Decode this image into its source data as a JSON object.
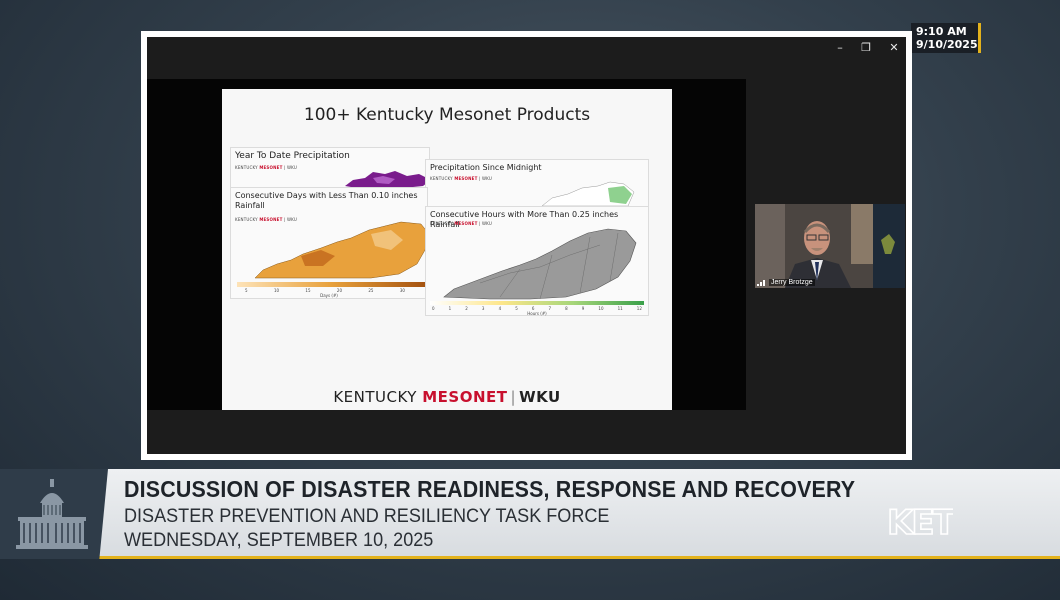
{
  "clock": {
    "time": "9:10 AM",
    "date": "9/10/2025"
  },
  "window_controls": {
    "minimize": "–",
    "restore": "❐",
    "close": "✕"
  },
  "slide": {
    "title": "100+ Kentucky Mesonet Products",
    "panels": [
      {
        "title": "Year To Date Precipitation"
      },
      {
        "title": "Precipitation Since Midnight"
      },
      {
        "title": "Consecutive Days with Less Than 0.10 inches Rainfall",
        "axis_label": "Days (#)",
        "ticks": [
          "5",
          "10",
          "15",
          "20",
          "25",
          "30"
        ]
      },
      {
        "title": "Consecutive Hours with More Than 0.25 inches Rainfall",
        "axis_label": "Hours (#)",
        "ticks": [
          "0",
          "1",
          "2",
          "3",
          "4",
          "5",
          "6",
          "7",
          "8",
          "9",
          "10",
          "11",
          "12"
        ]
      }
    ],
    "mini_brand": {
      "kentucky": "KENTUCKY ",
      "mesonet": "MESONET",
      "wku": " | WKU"
    },
    "footer": {
      "kentucky": "KENTUCKY ",
      "mesonet": "MESONET",
      "sep": "|",
      "wku": "WKU"
    }
  },
  "camera": {
    "participant_name": "Jerry Brotzge"
  },
  "lower_third": {
    "headline": "DISCUSSION OF DISASTER READINESS, RESPONSE AND RECOVERY",
    "committee": "DISASTER PREVENTION AND RESILIENCY TASK FORCE",
    "date": "WEDNESDAY, SEPTEMBER 10, 2025",
    "logo": "KET"
  },
  "colors": {
    "accent_gold": "#e3b21c",
    "mesonet_red": "#c8102e",
    "capitol_box": "#2f3c49",
    "orange_map": "#e8a13c",
    "purple_map": "#7a1c8c"
  }
}
